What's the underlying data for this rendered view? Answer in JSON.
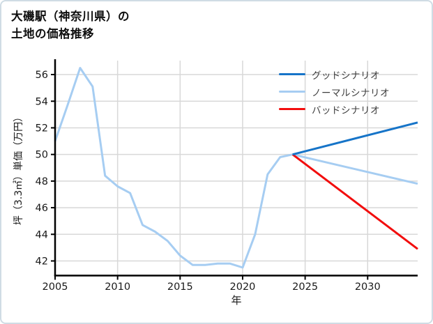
{
  "card": {
    "background": "#ffffff",
    "border_color": "#cfdce4"
  },
  "title": {
    "line1": "大磯駅（神奈川県）の",
    "line2": "土地の価格推移"
  },
  "chart_data": {
    "type": "line",
    "title": "大磯駅（神奈川県）の土地の価格推移",
    "xlabel": "年",
    "ylabel": "坪（3.3㎡）単価（万円）",
    "xlim": [
      2005,
      2034
    ],
    "ylim": [
      40.9,
      57.05
    ],
    "x_ticks": [
      2005,
      2010,
      2015,
      2020,
      2025,
      2030
    ],
    "y_ticks": [
      42,
      44,
      46,
      48,
      50,
      52,
      54,
      56
    ],
    "grid": true,
    "grid_color": "#d8d8d8",
    "axis_color": "#000000",
    "tick_label_color": "#1a1a1a",
    "legend_position": "upper right",
    "legend": [
      {
        "key": "good",
        "label": "グッドシナリオ",
        "color": "#1674c8"
      },
      {
        "key": "normal",
        "label": "ノーマルシナリオ",
        "color": "#a6cdf2"
      },
      {
        "key": "bad",
        "label": "バッドシナリオ",
        "color": "#f20d0d"
      }
    ],
    "series": [
      {
        "key": "normal",
        "name": "ノーマルシナリオ",
        "color": "#a6cdf2",
        "x": [
          2005,
          2006,
          2007,
          2008,
          2009,
          2010,
          2011,
          2012,
          2013,
          2014,
          2015,
          2016,
          2017,
          2018,
          2019,
          2020,
          2021,
          2022,
          2023,
          2024,
          2034
        ],
        "values": [
          51.0,
          53.7,
          56.5,
          55.1,
          48.4,
          47.6,
          47.1,
          44.7,
          44.2,
          43.5,
          42.4,
          41.7,
          41.7,
          41.8,
          41.8,
          41.5,
          44.0,
          48.5,
          49.8,
          50.0,
          47.8
        ]
      },
      {
        "key": "bad",
        "name": "バッドシナリオ",
        "color": "#f20d0d",
        "x": [
          2024,
          2034
        ],
        "values": [
          50.0,
          42.9
        ]
      },
      {
        "key": "good",
        "name": "グッドシナリオ",
        "color": "#1674c8",
        "x": [
          2024,
          2034
        ],
        "values": [
          50.0,
          52.4
        ]
      }
    ]
  }
}
